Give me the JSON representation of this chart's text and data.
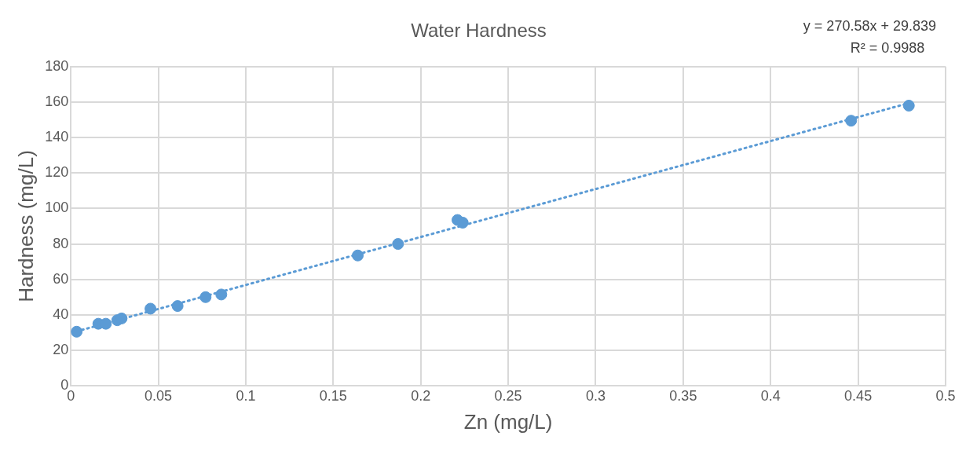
{
  "chart_data": {
    "type": "scatter",
    "title": "Water Hardness",
    "xlabel": "Zn (mg/L)",
    "ylabel": "Hardness (mg/L)",
    "xlim": [
      0,
      0.5
    ],
    "xticks": [
      0,
      0.05,
      0.1,
      0.15,
      0.2,
      0.25,
      0.3,
      0.35,
      0.4,
      0.45,
      0.5
    ],
    "ylim": [
      0,
      180
    ],
    "yticks": [
      0,
      20,
      40,
      60,
      80,
      100,
      120,
      140,
      160,
      180
    ],
    "grid": true,
    "legend": false,
    "marker": "circle",
    "series": [
      {
        "type": "scatter",
        "color": "#5b9bd5",
        "x": [
          0.0033,
          0.0157,
          0.02,
          0.0265,
          0.029,
          0.0455,
          0.061,
          0.077,
          0.086,
          0.164,
          0.187,
          0.221,
          0.224,
          0.446,
          0.479
        ],
        "values": [
          30.5,
          35,
          35,
          37,
          38,
          43.5,
          45,
          50,
          51.5,
          73.5,
          80,
          93.5,
          92,
          149.5,
          158
        ]
      },
      {
        "type": "line",
        "color": "#5b9bd5",
        "line_style": "dotted",
        "marker": "none",
        "x": [
          0.0033,
          0.479
        ],
        "values": [
          30.7,
          159.4
        ]
      }
    ],
    "annotations": [
      "y = 270.58x + 29.839",
      "R² = 0.9988"
    ]
  }
}
